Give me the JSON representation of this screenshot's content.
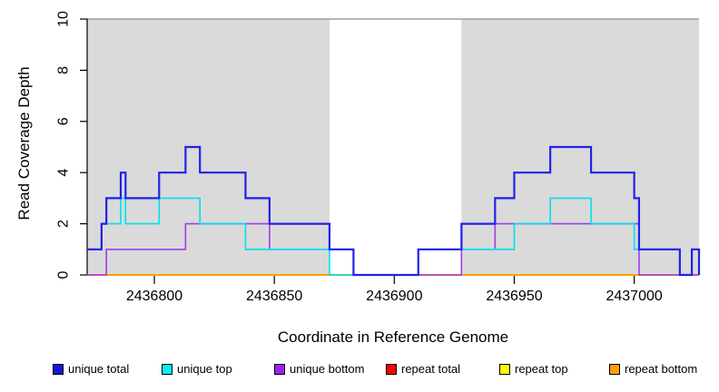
{
  "chart_data": {
    "type": "line",
    "subtype": "step-coverage",
    "title": "",
    "xlabel": "Coordinate in Reference Genome",
    "ylabel": "Read Coverage Depth",
    "x_range": [
      2436772,
      2437027
    ],
    "y_range": [
      0,
      10
    ],
    "x_ticks": [
      2436800,
      2436850,
      2436900,
      2436950,
      2437000
    ],
    "y_ticks": [
      0,
      2,
      4,
      6,
      8,
      10
    ],
    "grid": false,
    "background_color": "#FFFFFF",
    "shaded_regions": {
      "color": "#DADADA",
      "comment": "repeat-masked genomic segments shaded gray from y=0 to y=10",
      "ranges": [
        [
          2436772,
          2436873
        ],
        [
          2436928,
          2437027
        ]
      ]
    },
    "top_rule": {
      "y": 10,
      "color": "#8A8A8A"
    },
    "series": [
      {
        "name": "repeat total",
        "color": "#F40000",
        "line_width": 1.4,
        "end_drop": false,
        "steps": [
          [
            2436772,
            0
          ]
        ]
      },
      {
        "name": "repeat top",
        "color": "#FFFF00",
        "line_width": 1.4,
        "end_drop": false,
        "steps": [
          [
            2436772,
            0
          ]
        ]
      },
      {
        "name": "repeat bottom",
        "color": "#FFA000",
        "line_width": 2.0,
        "end_drop": false,
        "steps": [
          [
            2436772,
            0
          ]
        ]
      },
      {
        "name": "unique bottom",
        "color": "#A23CE8",
        "line_width": 1.6,
        "end_drop": false,
        "steps": [
          [
            2436772,
            0
          ],
          [
            2436780,
            1
          ],
          [
            2436813,
            2
          ],
          [
            2436848,
            1
          ],
          [
            2436883,
            0
          ],
          [
            2436928,
            1
          ],
          [
            2436942,
            2
          ],
          [
            2437002,
            0
          ]
        ]
      },
      {
        "name": "unique top",
        "color": "#00E1EC",
        "line_width": 1.6,
        "end_drop": true,
        "steps": [
          [
            2436772,
            1
          ],
          [
            2436778,
            2
          ],
          [
            2436786,
            3
          ],
          [
            2436788,
            2
          ],
          [
            2436802,
            3
          ],
          [
            2436819,
            2
          ],
          [
            2436838,
            1
          ],
          [
            2436873,
            0
          ],
          [
            2436910,
            1
          ],
          [
            2436950,
            2
          ],
          [
            2436965,
            3
          ],
          [
            2436982,
            2
          ],
          [
            2437000,
            1
          ],
          [
            2437019,
            0
          ],
          [
            2437024,
            1
          ]
        ]
      },
      {
        "name": "unique total",
        "color": "#2121E8",
        "line_width": 2.2,
        "end_drop": true,
        "steps": [
          [
            2436772,
            1
          ],
          [
            2436778,
            2
          ],
          [
            2436780,
            3
          ],
          [
            2436786,
            4
          ],
          [
            2436788,
            3
          ],
          [
            2436802,
            4
          ],
          [
            2436813,
            5
          ],
          [
            2436819,
            4
          ],
          [
            2436838,
            3
          ],
          [
            2436848,
            2
          ],
          [
            2436873,
            1
          ],
          [
            2436883,
            0
          ],
          [
            2436910,
            1
          ],
          [
            2436928,
            2
          ],
          [
            2436942,
            3
          ],
          [
            2436950,
            4
          ],
          [
            2436965,
            5
          ],
          [
            2436982,
            4
          ],
          [
            2437000,
            3
          ],
          [
            2437002,
            1
          ],
          [
            2437019,
            0
          ],
          [
            2437024,
            1
          ]
        ]
      }
    ],
    "legend": {
      "position": "bottom",
      "items": [
        {
          "label": "unique total",
          "color": "#1515DD"
        },
        {
          "label": "unique top",
          "color": "#00F0FF"
        },
        {
          "label": "unique bottom",
          "color": "#A020F0"
        },
        {
          "label": "repeat total",
          "color": "#FF0000"
        },
        {
          "label": "repeat top",
          "color": "#FFFF00"
        },
        {
          "label": "repeat bottom",
          "color": "#FFA000"
        }
      ]
    }
  }
}
